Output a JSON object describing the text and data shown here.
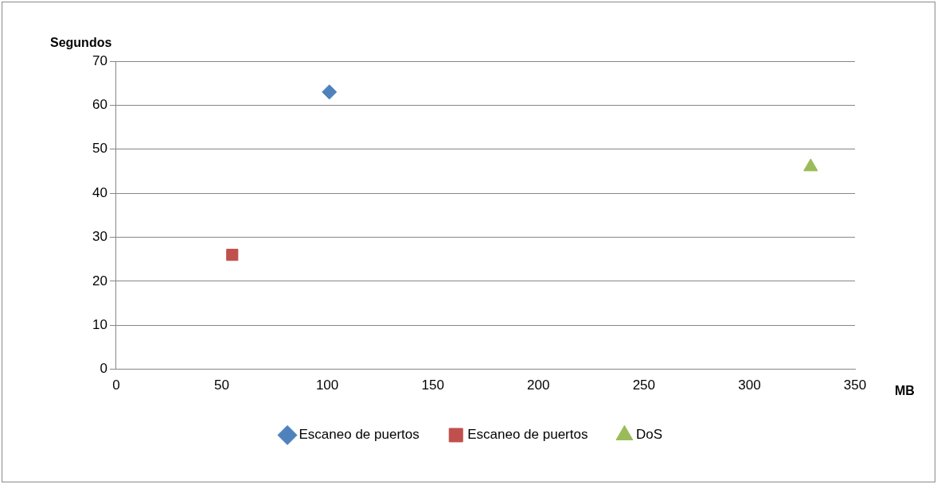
{
  "chart_data": {
    "type": "scatter",
    "xlabel": "MB",
    "ylabel": "Segundos",
    "xlim": [
      0,
      350
    ],
    "xticks": [
      0,
      50,
      100,
      150,
      200,
      250,
      300,
      350
    ],
    "ylim": [
      0,
      70
    ],
    "yticks": [
      0,
      10,
      20,
      30,
      40,
      50,
      60,
      70
    ],
    "grid": "y",
    "legend": "bottom",
    "series": [
      {
        "name": "Escaneo de puertos",
        "color": "#4f81bd",
        "marker": "diamond",
        "x": [
          101
        ],
        "values": [
          63
        ]
      },
      {
        "name": "Escaneo de puertos",
        "color": "#c0504d",
        "marker": "square",
        "x": [
          55
        ],
        "values": [
          26
        ]
      },
      {
        "name": "DoS",
        "color": "#9bbb59",
        "marker": "triangle",
        "x": [
          329
        ],
        "values": [
          46
        ]
      }
    ]
  }
}
